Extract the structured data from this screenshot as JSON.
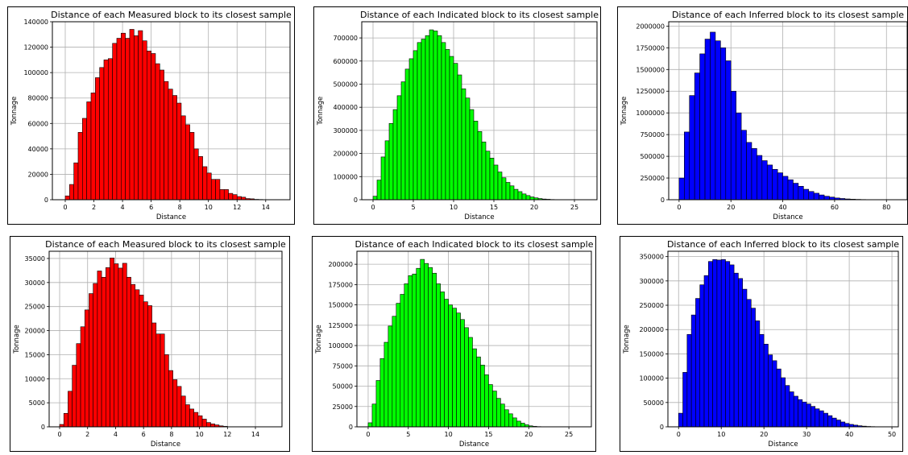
{
  "chart_data": [
    {
      "type": "bar",
      "title": "Distance of each Measured block to its closest sample",
      "xlabel": "Distance",
      "ylabel": "Tonnage",
      "xlim": [
        -0.9,
        15.7
      ],
      "ylim": [
        0,
        140000
      ],
      "xticks": [
        0,
        2,
        4,
        6,
        8,
        10,
        12,
        14
      ],
      "yticks": [
        0,
        20000,
        40000,
        60000,
        80000,
        100000,
        120000,
        140000
      ],
      "grid": true,
      "color": "#ff0000",
      "bin_start": 0.0,
      "bin_width": 0.3,
      "values": [
        3000,
        12000,
        29000,
        53000,
        64000,
        77000,
        84000,
        96000,
        104000,
        110000,
        111000,
        123000,
        127000,
        131000,
        127000,
        134000,
        129000,
        133000,
        125000,
        117000,
        115000,
        107000,
        102000,
        93000,
        87000,
        82000,
        76000,
        66000,
        59000,
        53000,
        40000,
        34000,
        26000,
        21000,
        16000,
        16000,
        8000,
        8000,
        5000,
        4000,
        2500,
        2000,
        900,
        700,
        300,
        200
      ]
    },
    {
      "type": "bar",
      "title": "Distance of each Indicated block to its closest sample",
      "xlabel": "Distance",
      "ylabel": "Tonnage",
      "xlim": [
        -1.4,
        27.8
      ],
      "ylim": [
        0,
        770000
      ],
      "xticks": [
        0,
        5,
        10,
        15,
        20,
        25
      ],
      "yticks": [
        0,
        100000,
        200000,
        300000,
        400000,
        500000,
        600000,
        700000
      ],
      "grid": true,
      "color": "#00ff00",
      "bin_start": 0.0,
      "bin_width": 0.5,
      "values": [
        15000,
        85000,
        185000,
        255000,
        330000,
        390000,
        450000,
        510000,
        565000,
        610000,
        645000,
        680000,
        695000,
        710000,
        735000,
        730000,
        710000,
        680000,
        650000,
        620000,
        590000,
        540000,
        480000,
        440000,
        390000,
        340000,
        295000,
        250000,
        210000,
        180000,
        150000,
        120000,
        95000,
        75000,
        60000,
        45000,
        35000,
        25000,
        18000,
        12000,
        8000,
        5000,
        3000,
        2000,
        1000,
        700,
        400,
        200
      ]
    },
    {
      "type": "bar",
      "title": "Distance of each Inferred block to its closest sample",
      "xlabel": "Distance",
      "ylabel": "Tonnage",
      "xlim": [
        -4.0,
        88.0
      ],
      "ylim": [
        0,
        2050000
      ],
      "xticks": [
        0,
        20,
        40,
        60,
        80
      ],
      "yticks": [
        0,
        250000,
        500000,
        750000,
        1000000,
        1250000,
        1500000,
        1750000,
        2000000
      ],
      "grid": true,
      "color": "#0000ff",
      "bin_start": 0.0,
      "bin_width": 2.0,
      "values": [
        250000,
        780000,
        1200000,
        1460000,
        1680000,
        1850000,
        1930000,
        1830000,
        1750000,
        1600000,
        1250000,
        1000000,
        800000,
        660000,
        590000,
        510000,
        450000,
        400000,
        350000,
        310000,
        270000,
        230000,
        190000,
        155000,
        120000,
        95000,
        75000,
        55000,
        40000,
        30000,
        20000,
        14000,
        9000,
        6000,
        4000,
        2500,
        1500,
        800,
        400,
        200
      ]
    },
    {
      "type": "bar",
      "title": "Distance of each Measured block to its closest sample",
      "xlabel": "Distance",
      "ylabel": "Tonnage",
      "xlim": [
        -0.75,
        15.9
      ],
      "ylim": [
        0,
        36500
      ],
      "xticks": [
        0,
        2,
        4,
        6,
        8,
        10,
        12,
        14
      ],
      "yticks": [
        0,
        5000,
        10000,
        15000,
        20000,
        25000,
        30000,
        35000
      ],
      "grid": true,
      "color": "#ff0000",
      "bin_start": 0.0,
      "bin_width": 0.3,
      "values": [
        500,
        2800,
        7400,
        12800,
        17300,
        20800,
        24300,
        27700,
        29800,
        32400,
        31100,
        33100,
        35100,
        33900,
        33000,
        34000,
        31100,
        29600,
        28500,
        27400,
        26000,
        25200,
        21600,
        19300,
        19300,
        15000,
        11700,
        9800,
        8400,
        6400,
        4600,
        3700,
        3000,
        2300,
        1600,
        900,
        600,
        400,
        200,
        100
      ]
    },
    {
      "type": "bar",
      "title": "Distance of each Indicated block to its closest sample",
      "xlabel": "Distance",
      "ylabel": "Tonnage",
      "xlim": [
        -1.4,
        27.8
      ],
      "ylim": [
        0,
        216000
      ],
      "xticks": [
        0,
        5,
        10,
        15,
        20,
        25
      ],
      "yticks": [
        0,
        25000,
        50000,
        75000,
        100000,
        125000,
        150000,
        175000,
        200000
      ],
      "grid": true,
      "color": "#00ff00",
      "bin_start": 0.0,
      "bin_width": 0.5,
      "values": [
        5000,
        28000,
        57000,
        84000,
        104000,
        124000,
        136000,
        152000,
        163000,
        176000,
        186000,
        188000,
        195000,
        206000,
        201000,
        196000,
        189000,
        176000,
        166000,
        157000,
        150000,
        146000,
        140000,
        132000,
        122000,
        110000,
        96000,
        86000,
        76000,
        64000,
        52000,
        44000,
        35000,
        28000,
        21000,
        16000,
        11000,
        7000,
        4500,
        2500,
        1200,
        600,
        300,
        150
      ]
    },
    {
      "type": "bar",
      "title": "Distance of each Inferred block to its closest sample",
      "xlabel": "Distance",
      "ylabel": "Tonnage",
      "xlim": [
        -2.5,
        51.5
      ],
      "ylim": [
        0,
        361000
      ],
      "xticks": [
        0,
        10,
        20,
        30,
        40,
        50
      ],
      "yticks": [
        0,
        50000,
        100000,
        150000,
        200000,
        250000,
        300000,
        350000
      ],
      "grid": true,
      "color": "#0000ff",
      "bin_start": 0.0,
      "bin_width": 1.0,
      "values": [
        28000,
        112000,
        190000,
        230000,
        264000,
        292000,
        311000,
        340000,
        344000,
        343000,
        344000,
        340000,
        333000,
        316000,
        305000,
        283000,
        262000,
        244000,
        218000,
        190000,
        170000,
        148000,
        136000,
        119000,
        101000,
        85000,
        72000,
        63000,
        56000,
        51000,
        47000,
        42000,
        37000,
        33000,
        28000,
        23000,
        18000,
        14000,
        10000,
        7000,
        5000,
        3500,
        2200,
        1400,
        800,
        500,
        300,
        150
      ]
    }
  ]
}
